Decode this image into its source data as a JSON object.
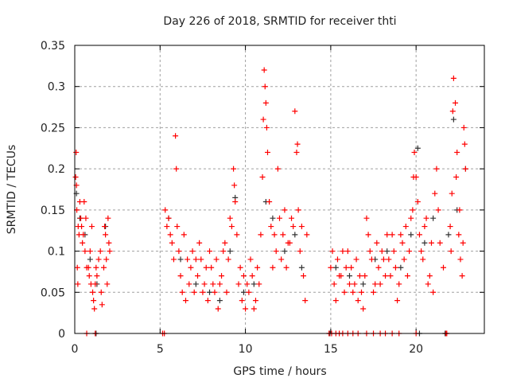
{
  "chart_data": {
    "type": "scatter",
    "title": "Day 226 of 2018, SRMTID for receiver thti",
    "xlabel": "GPS time / hours",
    "ylabel": "SRMTID / TECUs",
    "xlim": [
      0,
      24
    ],
    "ylim": [
      0,
      0.35
    ],
    "xticks": [
      0,
      5,
      10,
      15,
      20
    ],
    "xtick_labels": [
      "0",
      "5",
      "10",
      "15",
      "20"
    ],
    "yticks": [
      0,
      0.05,
      0.1,
      0.15,
      0.2,
      0.25,
      0.3,
      0.35
    ],
    "ytick_labels": [
      "0",
      "0.05",
      "0.1",
      "0.15",
      "0.2",
      "0.25",
      "0.3",
      "0.35"
    ],
    "grid": true,
    "legend": "none",
    "series": [
      {
        "name": "black",
        "color": "#333333",
        "points": [
          [
            0.1,
            0.17
          ],
          [
            0.3,
            0.14
          ],
          [
            0.6,
            0.12
          ],
          [
            0.9,
            0.09
          ],
          [
            1.3,
            0.06
          ],
          [
            1.8,
            0.13
          ],
          [
            1.25,
            0
          ],
          [
            5.5,
            0.14
          ],
          [
            6.2,
            0.09
          ],
          [
            7.1,
            0.06
          ],
          [
            7.9,
            0.05
          ],
          [
            8.5,
            0.04
          ],
          [
            9.1,
            0.1
          ],
          [
            9.4,
            0.165
          ],
          [
            9.9,
            0.05
          ],
          [
            10.5,
            0.06
          ],
          [
            11.2,
            0.16
          ],
          [
            11.6,
            0.14
          ],
          [
            12.3,
            0.1
          ],
          [
            12.9,
            0.12
          ],
          [
            13.3,
            0.08
          ],
          [
            14.95,
            0
          ],
          [
            15.3,
            0.08
          ],
          [
            16.1,
            0.07
          ],
          [
            16.9,
            0.06
          ],
          [
            17.6,
            0.09
          ],
          [
            18.3,
            0.1
          ],
          [
            19.1,
            0.08
          ],
          [
            19.7,
            0.12
          ],
          [
            20.1,
            0.225
          ],
          [
            20.5,
            0.11
          ],
          [
            21.0,
            0.14
          ],
          [
            21.9,
            0.12
          ],
          [
            22.2,
            0.26
          ],
          [
            22.4,
            0.15
          ],
          [
            22.9,
            0.2
          ],
          [
            20.2,
            0
          ],
          [
            21.7,
            0
          ]
        ]
      },
      {
        "name": "red",
        "color": "#ff0000",
        "points": [
          [
            0.05,
            0.19
          ],
          [
            0.08,
            0.22
          ],
          [
            0.1,
            0.18
          ],
          [
            0.12,
            0.15
          ],
          [
            0.15,
            0.08
          ],
          [
            0.18,
            0.06
          ],
          [
            0.2,
            0.13
          ],
          [
            0.25,
            0.12
          ],
          [
            0.3,
            0.16
          ],
          [
            0.35,
            0.14
          ],
          [
            0.4,
            0.13
          ],
          [
            0.45,
            0.11
          ],
          [
            0.5,
            0.12
          ],
          [
            0.55,
            0.16
          ],
          [
            0.6,
            0.1
          ],
          [
            0.65,
            0.14
          ],
          [
            0.7,
            0.08
          ],
          [
            0.8,
            0.08
          ],
          [
            0.85,
            0.07
          ],
          [
            0.9,
            0.1
          ],
          [
            0.95,
            0.06
          ],
          [
            1.0,
            0.13
          ],
          [
            1.05,
            0.05
          ],
          [
            1.1,
            0.04
          ],
          [
            1.15,
            0.03
          ],
          [
            1.2,
            0.06
          ],
          [
            1.25,
            0.08
          ],
          [
            1.3,
            0.07
          ],
          [
            1.4,
            0.09
          ],
          [
            1.5,
            0.1
          ],
          [
            1.55,
            0.05
          ],
          [
            1.6,
            0.035
          ],
          [
            1.7,
            0.08
          ],
          [
            1.75,
            0.13
          ],
          [
            1.8,
            0.12
          ],
          [
            1.85,
            0.09
          ],
          [
            1.9,
            0.06
          ],
          [
            1.95,
            0.14
          ],
          [
            2.0,
            0.11
          ],
          [
            2.05,
            0.1
          ],
          [
            5.3,
            0.15
          ],
          [
            5.4,
            0.13
          ],
          [
            5.5,
            0.14
          ],
          [
            5.6,
            0.12
          ],
          [
            5.7,
            0.11
          ],
          [
            5.8,
            0.09
          ],
          [
            5.9,
            0.24
          ],
          [
            5.95,
            0.2
          ],
          [
            6.0,
            0.13
          ],
          [
            6.1,
            0.1
          ],
          [
            6.2,
            0.07
          ],
          [
            6.3,
            0.05
          ],
          [
            6.4,
            0.12
          ],
          [
            6.5,
            0.04
          ],
          [
            6.6,
            0.09
          ],
          [
            6.7,
            0.06
          ],
          [
            6.8,
            0.08
          ],
          [
            6.9,
            0.1
          ],
          [
            7.0,
            0.05
          ],
          [
            7.1,
            0.09
          ],
          [
            7.2,
            0.07
          ],
          [
            7.3,
            0.11
          ],
          [
            7.4,
            0.09
          ],
          [
            7.5,
            0.05
          ],
          [
            7.6,
            0.06
          ],
          [
            7.7,
            0.08
          ],
          [
            7.8,
            0.04
          ],
          [
            7.9,
            0.1
          ],
          [
            8.0,
            0.08
          ],
          [
            8.1,
            0.06
          ],
          [
            8.2,
            0.05
          ],
          [
            8.3,
            0.09
          ],
          [
            8.4,
            0.03
          ],
          [
            8.5,
            0.06
          ],
          [
            8.6,
            0.07
          ],
          [
            8.7,
            0.1
          ],
          [
            8.8,
            0.11
          ],
          [
            8.9,
            0.05
          ],
          [
            9.0,
            0.09
          ],
          [
            9.1,
            0.14
          ],
          [
            9.2,
            0.13
          ],
          [
            9.3,
            0.2
          ],
          [
            9.35,
            0.18
          ],
          [
            9.4,
            0.16
          ],
          [
            9.5,
            0.12
          ],
          [
            9.6,
            0.06
          ],
          [
            9.7,
            0.08
          ],
          [
            9.8,
            0.04
          ],
          [
            9.9,
            0.07
          ],
          [
            10.0,
            0.03
          ],
          [
            10.1,
            0.06
          ],
          [
            10.2,
            0.05
          ],
          [
            10.3,
            0.09
          ],
          [
            10.4,
            0.07
          ],
          [
            10.5,
            0.03
          ],
          [
            10.6,
            0.04
          ],
          [
            10.7,
            0.08
          ],
          [
            10.8,
            0.06
          ],
          [
            10.9,
            0.12
          ],
          [
            11.0,
            0.19
          ],
          [
            11.05,
            0.26
          ],
          [
            11.1,
            0.32
          ],
          [
            11.15,
            0.3
          ],
          [
            11.2,
            0.28
          ],
          [
            11.25,
            0.25
          ],
          [
            11.3,
            0.22
          ],
          [
            11.4,
            0.16
          ],
          [
            11.5,
            0.13
          ],
          [
            11.6,
            0.08
          ],
          [
            11.7,
            0.12
          ],
          [
            11.8,
            0.1
          ],
          [
            11.9,
            0.2
          ],
          [
            12.0,
            0.14
          ],
          [
            12.1,
            0.09
          ],
          [
            12.2,
            0.12
          ],
          [
            12.3,
            0.15
          ],
          [
            12.4,
            0.08
          ],
          [
            12.5,
            0.11
          ],
          [
            12.6,
            0.11
          ],
          [
            12.7,
            0.14
          ],
          [
            12.8,
            0.13
          ],
          [
            12.9,
            0.27
          ],
          [
            13.0,
            0.22
          ],
          [
            13.05,
            0.23
          ],
          [
            13.1,
            0.15
          ],
          [
            13.2,
            0.1
          ],
          [
            13.3,
            0.13
          ],
          [
            13.4,
            0.07
          ],
          [
            13.5,
            0.04
          ],
          [
            13.6,
            0.12
          ],
          [
            15.0,
            0.08
          ],
          [
            15.1,
            0.1
          ],
          [
            15.2,
            0.06
          ],
          [
            15.3,
            0.04
          ],
          [
            15.4,
            0.09
          ],
          [
            15.5,
            0.07
          ],
          [
            15.6,
            0.07
          ],
          [
            15.7,
            0.1
          ],
          [
            15.8,
            0.05
          ],
          [
            15.9,
            0.08
          ],
          [
            16.0,
            0.1
          ],
          [
            16.1,
            0.06
          ],
          [
            16.2,
            0.08
          ],
          [
            16.3,
            0.05
          ],
          [
            16.4,
            0.06
          ],
          [
            16.5,
            0.09
          ],
          [
            16.6,
            0.04
          ],
          [
            16.7,
            0.07
          ],
          [
            16.8,
            0.05
          ],
          [
            16.9,
            0.03
          ],
          [
            17.0,
            0.07
          ],
          [
            17.1,
            0.14
          ],
          [
            17.2,
            0.12
          ],
          [
            17.3,
            0.1
          ],
          [
            17.4,
            0.09
          ],
          [
            17.5,
            0.05
          ],
          [
            17.6,
            0.06
          ],
          [
            17.7,
            0.11
          ],
          [
            17.8,
            0.08
          ],
          [
            17.9,
            0.06
          ],
          [
            18.0,
            0.1
          ],
          [
            18.1,
            0.09
          ],
          [
            18.2,
            0.07
          ],
          [
            18.3,
            0.12
          ],
          [
            18.4,
            0.09
          ],
          [
            18.5,
            0.07
          ],
          [
            18.6,
            0.12
          ],
          [
            18.7,
            0.1
          ],
          [
            18.8,
            0.08
          ],
          [
            18.9,
            0.04
          ],
          [
            19.0,
            0.06
          ],
          [
            19.1,
            0.12
          ],
          [
            19.2,
            0.11
          ],
          [
            19.3,
            0.09
          ],
          [
            19.4,
            0.13
          ],
          [
            19.5,
            0.07
          ],
          [
            19.6,
            0.1
          ],
          [
            19.7,
            0.14
          ],
          [
            19.8,
            0.15
          ],
          [
            19.85,
            0.19
          ],
          [
            19.9,
            0.22
          ],
          [
            20.0,
            0.19
          ],
          [
            20.1,
            0.16
          ],
          [
            20.2,
            0.12
          ],
          [
            20.3,
            0.1
          ],
          [
            20.4,
            0.09
          ],
          [
            20.5,
            0.13
          ],
          [
            20.6,
            0.14
          ],
          [
            20.7,
            0.06
          ],
          [
            20.8,
            0.07
          ],
          [
            20.9,
            0.11
          ],
          [
            21.0,
            0.05
          ],
          [
            21.1,
            0.17
          ],
          [
            21.2,
            0.2
          ],
          [
            21.3,
            0.15
          ],
          [
            21.4,
            0.11
          ],
          [
            21.6,
            0.08
          ],
          [
            22.0,
            0.13
          ],
          [
            22.05,
            0.1
          ],
          [
            22.1,
            0.17
          ],
          [
            22.15,
            0.27
          ],
          [
            22.2,
            0.31
          ],
          [
            22.3,
            0.28
          ],
          [
            22.35,
            0.19
          ],
          [
            22.4,
            0.22
          ],
          [
            22.5,
            0.12
          ],
          [
            22.55,
            0.15
          ],
          [
            22.6,
            0.09
          ],
          [
            22.7,
            0.07
          ],
          [
            22.75,
            0.11
          ],
          [
            22.8,
            0.25
          ],
          [
            22.85,
            0.23
          ],
          [
            22.9,
            0.2
          ],
          [
            0.7,
            0
          ],
          [
            1.2,
            0
          ],
          [
            5.15,
            0
          ],
          [
            5.25,
            0
          ],
          [
            14.9,
            0
          ],
          [
            15.05,
            0
          ],
          [
            15.3,
            0
          ],
          [
            15.5,
            0
          ],
          [
            15.7,
            0
          ],
          [
            16.0,
            0
          ],
          [
            16.3,
            0
          ],
          [
            16.6,
            0
          ],
          [
            17.1,
            0
          ],
          [
            17.5,
            0
          ],
          [
            17.9,
            0
          ],
          [
            18.2,
            0
          ],
          [
            18.6,
            0
          ],
          [
            19.0,
            0
          ],
          [
            20.0,
            0
          ],
          [
            21.75,
            0
          ],
          [
            21.8,
            0
          ]
        ]
      }
    ]
  }
}
